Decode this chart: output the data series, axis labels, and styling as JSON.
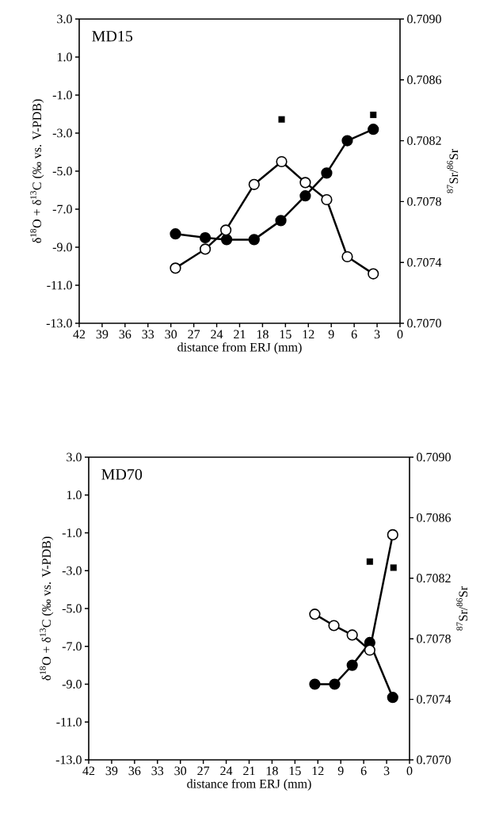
{
  "chart_data": [
    {
      "type": "line",
      "xlabel": "distance from ERJ (mm)",
      "ylabel": "δ$^{18}$O + δ$^{13}$C (‰ vs. V-PDB)",
      "y2label": "$^{87}$Sr/$^{86}$Sr",
      "annotations": [
        "MD15"
      ],
      "marker": "circle",
      "xlim": [
        42,
        0
      ],
      "xticks": [
        42,
        39,
        36,
        33,
        30,
        27,
        24,
        21,
        18,
        15,
        12,
        9,
        6,
        3,
        0
      ],
      "ylim": [
        -13,
        3
      ],
      "yticks": [
        {
          "value": 3,
          "label": "3.0"
        },
        {
          "value": 1,
          "label": "1.0"
        },
        {
          "value": -1,
          "label": "-1.0"
        },
        {
          "value": -3,
          "label": "-3.0"
        },
        {
          "value": -5,
          "label": "-5.0"
        },
        {
          "value": -7,
          "label": "-7.0"
        },
        {
          "value": -9,
          "label": "-9.0"
        },
        {
          "value": -11,
          "label": "-11.0"
        },
        {
          "value": -13,
          "label": "-13.0"
        }
      ],
      "y2lim": [
        0.707,
        0.709
      ],
      "y2ticks": [
        {
          "value": 0.707,
          "label": "0.7070"
        },
        {
          "value": 0.7074,
          "label": "0.7074"
        },
        {
          "value": 0.7078,
          "label": "0.7078"
        },
        {
          "value": 0.7082,
          "label": "0.7082"
        },
        {
          "value": 0.7086,
          "label": "0.7086"
        },
        {
          "value": 0.709,
          "label": "0.7090"
        }
      ],
      "series": [
        {
          "color": "#000000",
          "x": [
            29.4,
            25.5,
            22.7,
            19.1,
            15.6,
            12.4,
            9.6,
            6.9,
            3.5
          ],
          "values": [
            -8.3,
            -8.5,
            -8.6,
            -8.6,
            -7.6,
            -6.3,
            -5.1,
            -3.4,
            -2.8
          ]
        },
        {
          "color": "#ffffff",
          "x": [
            29.4,
            25.5,
            22.8,
            19.1,
            15.5,
            12.4,
            9.6,
            6.9,
            3.5
          ],
          "values": [
            -10.1,
            -9.1,
            -8.1,
            -5.7,
            -4.5,
            -5.6,
            -6.5,
            -9.5,
            -10.4
          ]
        },
        {
          "type": "scatter",
          "axis": "y2",
          "marker": "square",
          "color": "#000000",
          "x": [
            15.5,
            3.5
          ],
          "values": [
            0.70834,
            0.70837
          ]
        }
      ]
    },
    {
      "type": "line",
      "xlabel": "distance from ERJ (mm)",
      "ylabel": "δ$^{18}$O + δ$^{13}$C (‰ vs. V-PDB)",
      "y2label": "$^{87}$Sr/$^{86}$Sr",
      "annotations": [
        "MD70"
      ],
      "marker": "circle",
      "xlim": [
        42,
        0
      ],
      "xticks": [
        42,
        39,
        36,
        33,
        30,
        27,
        24,
        21,
        18,
        15,
        12,
        9,
        6,
        3,
        0
      ],
      "ylim": [
        -13,
        3
      ],
      "yticks": [
        {
          "value": 3,
          "label": "3.0"
        },
        {
          "value": 1,
          "label": "1.0"
        },
        {
          "value": -1,
          "label": "-1.0"
        },
        {
          "value": -3,
          "label": "-3.0"
        },
        {
          "value": -5,
          "label": "-5.0"
        },
        {
          "value": -7,
          "label": "-7.0"
        },
        {
          "value": -9,
          "label": "-9.0"
        },
        {
          "value": -11,
          "label": "-11.0"
        },
        {
          "value": -13,
          "label": "-13.0"
        }
      ],
      "y2lim": [
        0.707,
        0.709
      ],
      "y2ticks": [
        {
          "value": 0.707,
          "label": "0.7070"
        },
        {
          "value": 0.7074,
          "label": "0.7074"
        },
        {
          "value": 0.7078,
          "label": "0.7078"
        },
        {
          "value": 0.7082,
          "label": "0.7082"
        },
        {
          "value": 0.7086,
          "label": "0.7086"
        },
        {
          "value": 0.709,
          "label": "0.7090"
        }
      ],
      "series": [
        {
          "color": "#000000",
          "x": [
            12.4,
            9.8,
            7.5,
            5.2,
            2.2
          ],
          "values": [
            -9.0,
            -9.0,
            -8.0,
            -6.8,
            -9.7
          ]
        },
        {
          "color": "#ffffff",
          "x": [
            12.4,
            9.9,
            7.5,
            5.2,
            2.2
          ],
          "values": [
            -5.3,
            -5.9,
            -6.4,
            -7.2,
            -1.1
          ]
        },
        {
          "type": "scatter",
          "axis": "y2",
          "marker": "square",
          "color": "#000000",
          "x": [
            5.2,
            2.1
          ],
          "values": [
            0.70831,
            0.70827
          ]
        }
      ]
    }
  ]
}
